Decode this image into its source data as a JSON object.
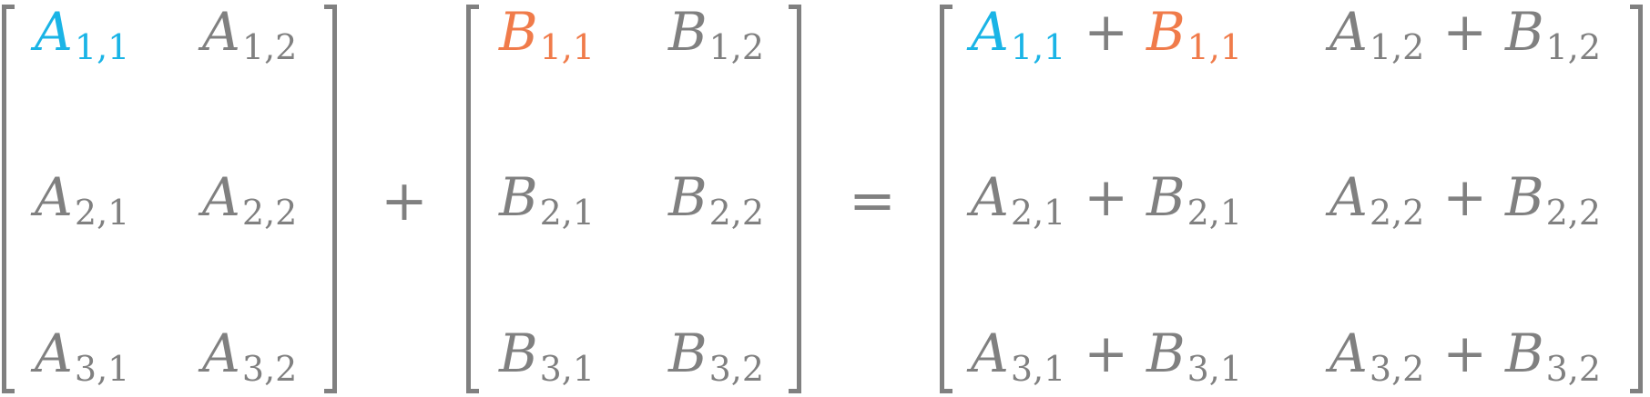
{
  "colors": {
    "text": "#808080",
    "a_highlight": "#1ab4e6",
    "b_highlight": "#f07b4a"
  },
  "operators": {
    "plus": "+",
    "equals": "="
  },
  "matrix_a": {
    "letter": "A",
    "subscripts": [
      [
        "1,1",
        "1,2"
      ],
      [
        "2,1",
        "2,2"
      ],
      [
        "3,1",
        "3,2"
      ]
    ]
  },
  "matrix_b": {
    "letter": "B",
    "subscripts": [
      [
        "1,1",
        "1,2"
      ],
      [
        "2,1",
        "2,2"
      ],
      [
        "3,1",
        "3,2"
      ]
    ]
  },
  "matrix_sum": {
    "left_letter": "A",
    "right_letter": "B",
    "inner_operator": "+",
    "subscripts": [
      [
        "1,1",
        "1,2"
      ],
      [
        "2,1",
        "2,2"
      ],
      [
        "3,1",
        "3,2"
      ]
    ]
  },
  "highlighted_entry": "1,1"
}
